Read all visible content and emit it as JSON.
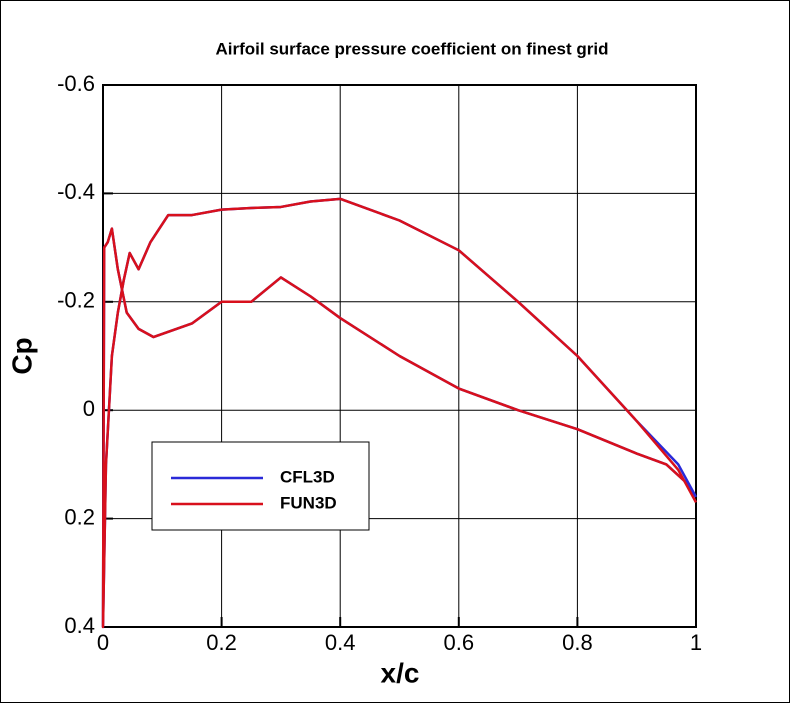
{
  "chart_data": {
    "type": "line",
    "title": "Airfoil surface pressure coefficient on finest grid",
    "x_label": "x/c",
    "y_label": "Cp",
    "x": [
      1,
      0.97,
      0.9,
      0.8,
      0.7,
      0.6,
      0.5,
      0.4,
      0.35,
      0.3,
      0.25,
      0.2,
      0.15,
      0.11,
      0.08,
      0.06,
      0.045,
      0.035,
      0.025,
      0.015,
      0.005,
      0,
      0.002,
      0.008,
      0.015,
      0.025,
      0.04,
      0.06,
      0.085,
      0.15,
      0.2,
      0.25,
      0.3,
      0.35,
      0.4,
      0.5,
      0.6,
      0.7,
      0.8,
      0.9,
      0.95,
      0.98,
      1
    ],
    "series": [
      {
        "name": "CFL3D",
        "color": "#2a2ad8",
        "values": [
          0.16,
          0.1,
          0.02,
          -0.1,
          -0.2,
          -0.295,
          -0.35,
          -0.39,
          -0.385,
          -0.375,
          -0.373,
          -0.37,
          -0.36,
          -0.36,
          -0.31,
          -0.26,
          -0.29,
          -0.24,
          -0.18,
          -0.1,
          0.1,
          0.4,
          -0.3,
          -0.31,
          -0.335,
          -0.26,
          -0.18,
          -0.15,
          -0.135,
          -0.16,
          -0.2,
          -0.2,
          -0.245,
          -0.21,
          -0.17,
          -0.1,
          -0.04,
          0.0,
          0.035,
          0.08,
          0.1,
          0.13,
          0.16
        ]
      },
      {
        "name": "FUN3D",
        "color": "#d8101c",
        "values": [
          0.17,
          0.11,
          0.02,
          -0.1,
          -0.2,
          -0.295,
          -0.35,
          -0.39,
          -0.385,
          -0.375,
          -0.373,
          -0.37,
          -0.36,
          -0.36,
          -0.31,
          -0.26,
          -0.29,
          -0.24,
          -0.18,
          -0.1,
          0.1,
          0.4,
          -0.3,
          -0.31,
          -0.335,
          -0.26,
          -0.18,
          -0.15,
          -0.135,
          -0.16,
          -0.2,
          -0.2,
          -0.245,
          -0.21,
          -0.17,
          -0.1,
          -0.04,
          0.0,
          0.035,
          0.08,
          0.1,
          0.13,
          0.17
        ]
      }
    ],
    "xlim": [
      0,
      1
    ],
    "xticks": [
      0,
      0.2,
      0.4,
      0.6,
      0.8,
      1
    ],
    "ylim": [
      -0.6,
      0.4
    ],
    "yticks": [
      -0.6,
      -0.4,
      -0.2,
      0,
      0.2,
      0.4
    ],
    "y_inverted": true,
    "grid": true,
    "legend_position": "lower left"
  }
}
